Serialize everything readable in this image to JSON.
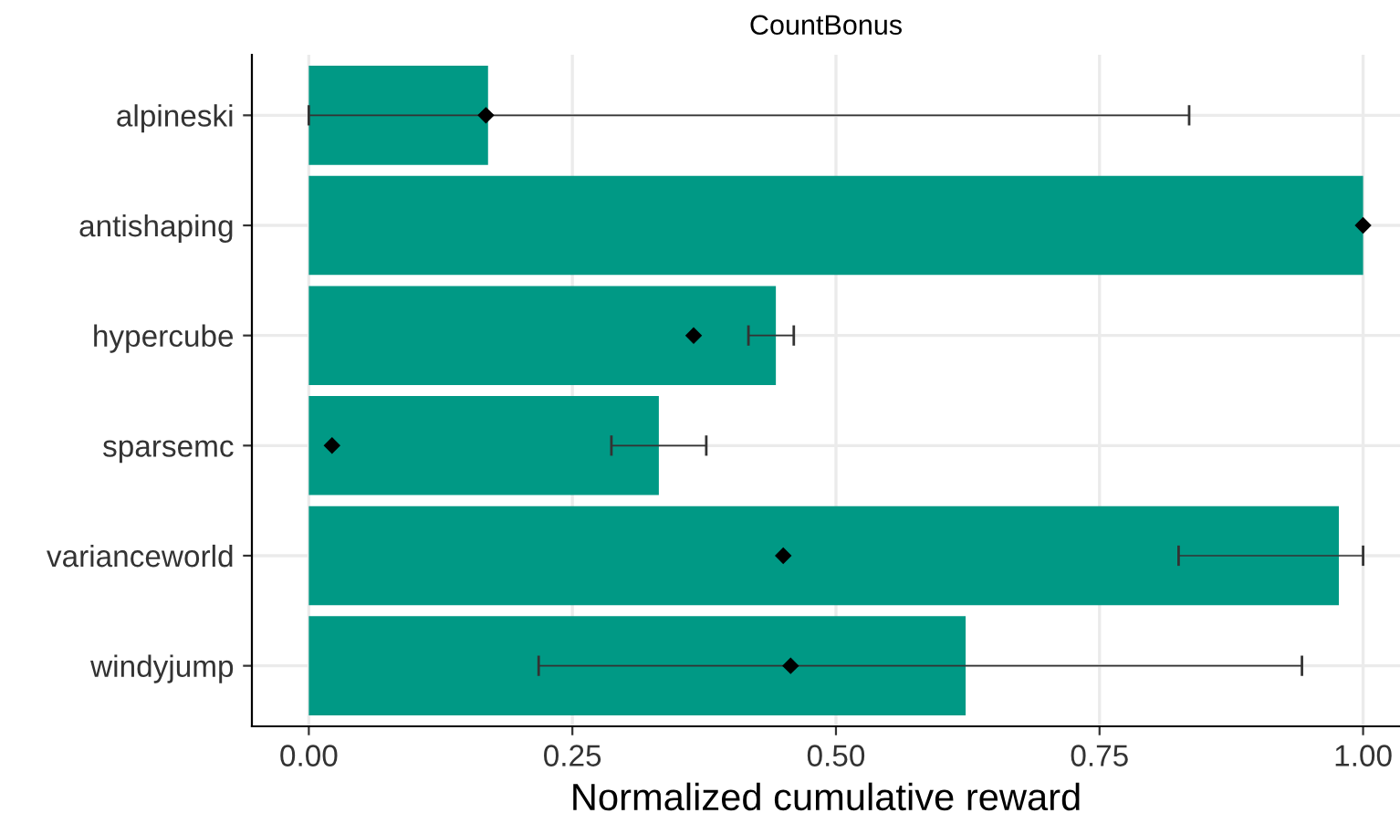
{
  "chart_data": {
    "type": "bar",
    "orientation": "horizontal",
    "title": "CountBonus",
    "xlabel": "Normalized cumulative reward",
    "categories": [
      "alpineski",
      "antishaping",
      "hypercube",
      "sparsemc",
      "varianceworld",
      "windyjump"
    ],
    "series": [
      {
        "color": "#009985",
        "values": [
          0.17,
          1.0,
          0.443,
          0.332,
          0.977,
          0.623
        ],
        "errors": [
          [
            0.0,
            0.835
          ],
          null,
          [
            0.417,
            0.46
          ],
          [
            0.287,
            0.377
          ],
          [
            0.825,
            1.0
          ],
          [
            0.218,
            0.942
          ]
        ]
      },
      {
        "type": "scatter",
        "color": "#000000",
        "marker": "diamond",
        "x": [
          "alpineski",
          "antishaping",
          "hypercube",
          "sparsemc",
          "varianceworld",
          "windyjump"
        ],
        "values": [
          0.168,
          1.0,
          0.365,
          0.022,
          0.45,
          0.457
        ]
      }
    ],
    "xlim": [
      -0.054,
      1.035
    ],
    "xticks": [
      {
        "value": 0,
        "label": "0.00"
      },
      {
        "value": 0.25,
        "label": "0.25"
      },
      {
        "value": 0.5,
        "label": "0.50"
      },
      {
        "value": 0.75,
        "label": "0.75"
      },
      {
        "value": 1,
        "label": "1.00"
      }
    ],
    "grid": true
  }
}
